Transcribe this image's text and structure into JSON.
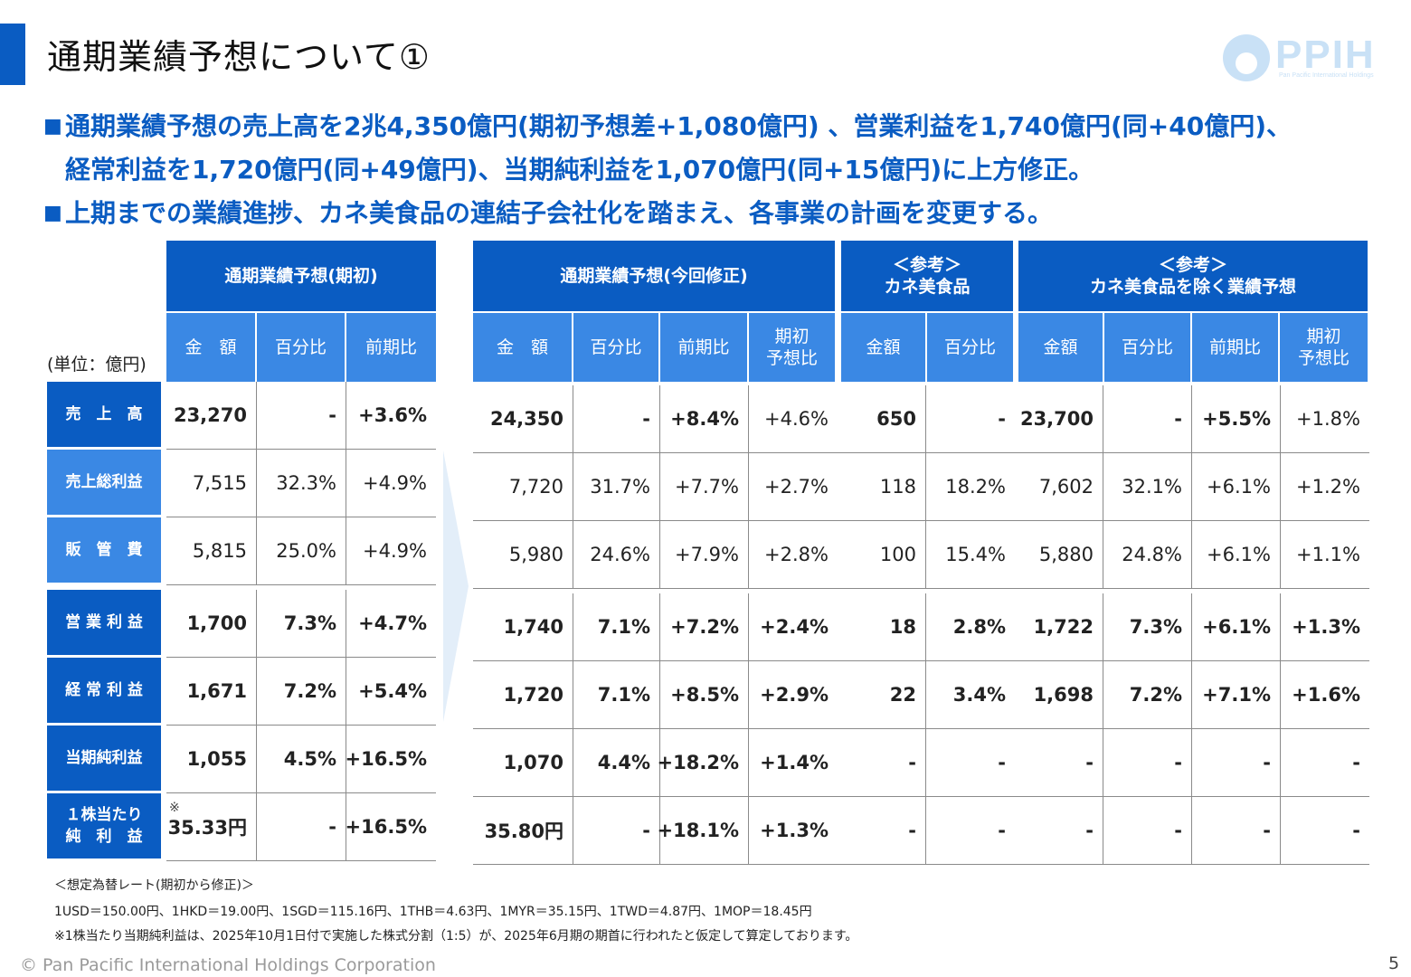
{
  "title": "通期業績予想について①",
  "logo": {
    "text": "PPIH",
    "sub": "Pan Pacific International Holdings"
  },
  "bullets": [
    {
      "mark": "■",
      "lines": [
        "通期業績予想の売上高を2兆4,350億円(期初予想差+1,080億円) 、営業利益を1,740億円(同+40億円)、",
        "経常利益を1,720億円(同+49億円)、当期純利益を1,070億円(同+15億円)に上方修正。"
      ]
    },
    {
      "mark": "■",
      "lines": [
        "上期までの業績進捗、カネ美食品の連結子会社化を踏まえ、各事業の計画を変更する。"
      ]
    }
  ],
  "unit_label": "(単位：億円)",
  "groups": {
    "initial": "通期業績予想(期初)",
    "revised": "通期業績予想(今回修正)",
    "kanemi": [
      "＜参考＞",
      "カネ美食品"
    ],
    "excl": [
      "＜参考＞",
      "カネ美食品を除く業績予想"
    ]
  },
  "subheaders": {
    "initial": [
      "金　額",
      "百分比",
      "前期比"
    ],
    "revised": [
      "金　額",
      "百分比",
      "前期比",
      "期初\n予想比"
    ],
    "kanemi": [
      "金額",
      "百分比"
    ],
    "excl": [
      "金額",
      "百分比",
      "前期比",
      "期初\n予想比"
    ]
  },
  "rows": [
    {
      "label": "売　上　高",
      "dark": true,
      "bold": true,
      "initial": [
        "23,270",
        "-",
        "+3.6%"
      ],
      "revised": [
        "24,350",
        "-",
        "+8.4%",
        "+4.6%"
      ],
      "kanemi": [
        "650",
        "-"
      ],
      "excl": [
        "23,700",
        "-",
        "+5.5%",
        "+1.8%"
      ]
    },
    {
      "label": "売上総利益",
      "dark": false,
      "bold": false,
      "initial": [
        "7,515",
        "32.3%",
        "+4.9%"
      ],
      "revised": [
        "7,720",
        "31.7%",
        "+7.7%",
        "+2.7%"
      ],
      "kanemi": [
        "118",
        "18.2%"
      ],
      "excl": [
        "7,602",
        "32.1%",
        "+6.1%",
        "+1.2%"
      ]
    },
    {
      "label": "販　管　費",
      "dark": false,
      "bold": false,
      "initial": [
        "5,815",
        "25.0%",
        "+4.9%"
      ],
      "revised": [
        "5,980",
        "24.6%",
        "+7.9%",
        "+2.8%"
      ],
      "kanemi": [
        "100",
        "15.4%"
      ],
      "excl": [
        "5,880",
        "24.8%",
        "+6.1%",
        "+1.1%"
      ]
    },
    {
      "label": "営 業 利 益",
      "dark": true,
      "bold": true,
      "initial": [
        "1,700",
        "7.3%",
        "+4.7%"
      ],
      "revised": [
        "1,740",
        "7.1%",
        "+7.2%",
        "+2.4%"
      ],
      "kanemi": [
        "18",
        "2.8%"
      ],
      "excl": [
        "1,722",
        "7.3%",
        "+6.1%",
        "+1.3%"
      ]
    },
    {
      "label": "経 常 利 益",
      "dark": true,
      "bold": true,
      "initial": [
        "1,671",
        "7.2%",
        "+5.4%"
      ],
      "revised": [
        "1,720",
        "7.1%",
        "+8.5%",
        "+2.9%"
      ],
      "kanemi": [
        "22",
        "3.4%"
      ],
      "excl": [
        "1,698",
        "7.2%",
        "+7.1%",
        "+1.6%"
      ]
    },
    {
      "label": "当期純利益",
      "dark": true,
      "bold": true,
      "initial": [
        "1,055",
        "4.5%",
        "+16.5%"
      ],
      "revised": [
        "1,070",
        "4.4%",
        "+18.2%",
        "+1.4%"
      ],
      "kanemi": [
        "-",
        "-"
      ],
      "excl": [
        "-",
        "-",
        "-",
        "-"
      ]
    },
    {
      "label": "１株当たり\n純　利　益",
      "dark": true,
      "bold": true,
      "mark": "※",
      "initial": [
        "35.33円",
        "-",
        "+16.5%"
      ],
      "revised": [
        "35.80円",
        "-",
        "+18.1%",
        "+1.3%"
      ],
      "kanemi": [
        "-",
        "-"
      ],
      "excl": [
        "-",
        "-",
        "-",
        "-"
      ]
    }
  ],
  "notes": [
    "＜想定為替レート(期初から修正)＞",
    "1USD＝150.00円、1HKD＝19.00円、1SGD＝115.16円、1THB＝4.63円、1MYR＝35.15円、1TWD＝4.87円、1MOP＝18.45円",
    "※1株当たり当期純利益は、2025年10月1日付で実施した株式分割（1:5）が、2025年6月期の期首に行われたと仮定して算定しております。"
  ],
  "copyright": "© Pan Pacific International Holdings Corporation",
  "page_number": "5",
  "colors": {
    "primary": "#0a5cc2",
    "secondary": "#3a88e4",
    "logo": "#c9e1f6"
  }
}
